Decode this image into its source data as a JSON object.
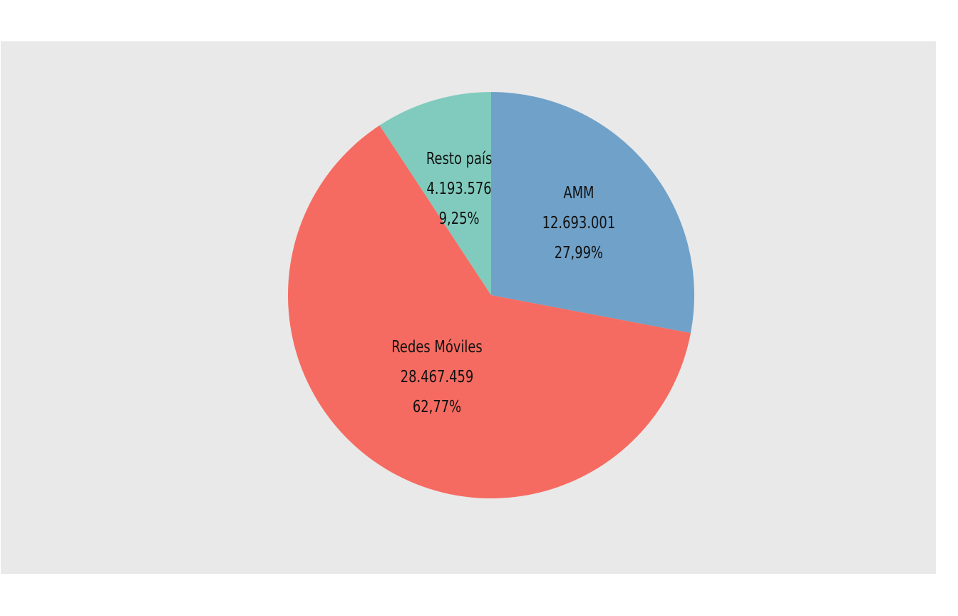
{
  "chart_data": {
    "type": "pie",
    "title": "",
    "start": "12 o'clock",
    "direction": "clockwise",
    "legend": "none",
    "slices": [
      {
        "name": "AMM",
        "value": 12693001,
        "value_label": "12.693.001",
        "percent_label": "27,99%",
        "color": "#6fa1c9"
      },
      {
        "name": "Redes Móviles",
        "value": 28467459,
        "value_label": "28.467.459",
        "percent_label": "62,77%",
        "color": "#f66b61"
      },
      {
        "name": "Resto país",
        "value": 4193576,
        "value_label": "4.193.576",
        "percent_label": "9,25%",
        "color": "#80cbbd"
      }
    ]
  },
  "colors": {
    "page_background": "#ffffff",
    "panel_background": "#e9e9e9",
    "label_text": "#111111"
  }
}
